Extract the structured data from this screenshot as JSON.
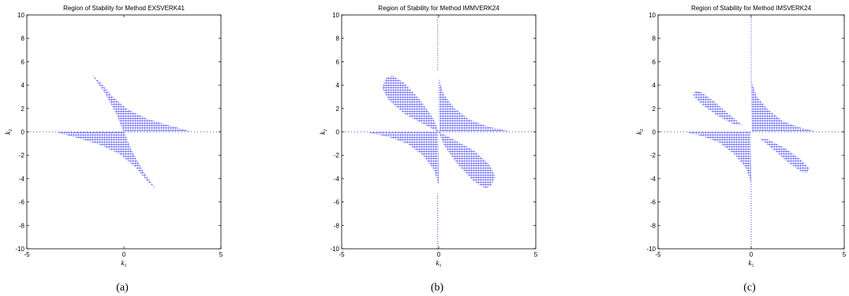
{
  "chart_data": [
    {
      "type": "scatter",
      "title": "Region of Stability for Method EXSVERK41",
      "xlabel": "k",
      "xlabel_sub": "1",
      "ylabel": "k",
      "ylabel_sub": "2",
      "xlim": [
        -5,
        5
      ],
      "ylim": [
        -10,
        10
      ],
      "xticks": [
        -5,
        0,
        5
      ],
      "yticks": [
        -10,
        -8,
        -6,
        -4,
        -2,
        0,
        2,
        4,
        6,
        8,
        10
      ],
      "caption": "(a)",
      "color": "#2b2bff",
      "regions": [
        [
          [
            -1.6,
            4.8
          ],
          [
            -1.2,
            4.2
          ],
          [
            -0.6,
            3.0
          ],
          [
            0.2,
            1.9
          ],
          [
            1.2,
            1.1
          ],
          [
            2.4,
            0.5
          ],
          [
            3.4,
            0.05
          ],
          [
            0,
            0
          ],
          [
            -0.4,
            1.6
          ],
          [
            -1.0,
            3.4
          ]
        ],
        [
          [
            1.6,
            -4.8
          ],
          [
            1.2,
            -4.2
          ],
          [
            0.6,
            -3.0
          ],
          [
            -0.2,
            -1.9
          ],
          [
            -1.2,
            -1.1
          ],
          [
            -2.4,
            -0.5
          ],
          [
            -3.4,
            -0.05
          ],
          [
            0,
            0
          ],
          [
            0.4,
            -1.6
          ],
          [
            1.0,
            -3.4
          ]
        ]
      ],
      "lines": []
    },
    {
      "type": "scatter",
      "title": "Region of Stability for Method IMMVERK24",
      "xlabel": "k",
      "xlabel_sub": "1",
      "ylabel": "k",
      "ylabel_sub": "2",
      "xlim": [
        -5,
        5
      ],
      "ylim": [
        -10,
        10
      ],
      "xticks": [
        -5,
        0,
        5
      ],
      "yticks": [
        -10,
        -8,
        -6,
        -4,
        -2,
        0,
        2,
        4,
        6,
        8,
        10
      ],
      "caption": "(b)",
      "color": "#2b2bff",
      "regions": [
        [
          [
            0.0,
            4.5
          ],
          [
            0.25,
            3.2
          ],
          [
            0.8,
            2.0
          ],
          [
            1.6,
            1.0
          ],
          [
            2.6,
            0.4
          ],
          [
            3.6,
            0.05
          ],
          [
            0.05,
            0.05
          ]
        ],
        [
          [
            0.0,
            -4.5
          ],
          [
            -0.25,
            -3.2
          ],
          [
            -0.8,
            -2.0
          ],
          [
            -1.6,
            -1.0
          ],
          [
            -2.6,
            -0.4
          ],
          [
            -3.6,
            -0.05
          ],
          [
            -0.05,
            -0.05
          ]
        ],
        [
          [
            -2.7,
            4.6
          ],
          [
            -2.4,
            4.8
          ],
          [
            -1.8,
            4.2
          ],
          [
            -1.0,
            2.8
          ],
          [
            -0.3,
            1.2
          ],
          [
            0,
            0
          ],
          [
            -0.8,
            0.7
          ],
          [
            -1.8,
            1.6
          ],
          [
            -2.6,
            2.8
          ],
          [
            -2.9,
            3.8
          ]
        ],
        [
          [
            2.7,
            -4.6
          ],
          [
            2.4,
            -4.8
          ],
          [
            1.8,
            -4.2
          ],
          [
            1.0,
            -2.8
          ],
          [
            0.3,
            -1.2
          ],
          [
            0,
            0
          ],
          [
            0.8,
            -0.7
          ],
          [
            1.8,
            -1.6
          ],
          [
            2.6,
            -2.8
          ],
          [
            2.9,
            -3.8
          ]
        ]
      ],
      "lines": [
        {
          "x": -0.05,
          "y": [
            5.3,
            10
          ]
        },
        {
          "x": -0.05,
          "y": [
            -10,
            -5.3
          ]
        }
      ]
    },
    {
      "type": "scatter",
      "title": "Region of Stability for Method IMSVERK24",
      "xlabel": "k",
      "xlabel_sub": "1",
      "ylabel": "k",
      "ylabel_sub": "2",
      "xlim": [
        -5,
        5
      ],
      "ylim": [
        -10,
        10
      ],
      "xticks": [
        -5,
        0,
        5
      ],
      "yticks": [
        -10,
        -8,
        -6,
        -4,
        -2,
        0,
        2,
        4,
        6,
        8,
        10
      ],
      "caption": "(c)",
      "color": "#2b2bff",
      "regions": [
        [
          [
            0.0,
            4.3
          ],
          [
            0.3,
            3.0
          ],
          [
            0.9,
            1.9
          ],
          [
            1.7,
            0.9
          ],
          [
            2.6,
            0.35
          ],
          [
            3.4,
            0.05
          ],
          [
            0.05,
            0.05
          ]
        ],
        [
          [
            0.0,
            -4.3
          ],
          [
            -0.3,
            -3.0
          ],
          [
            -0.9,
            -1.9
          ],
          [
            -1.7,
            -0.9
          ],
          [
            -2.6,
            -0.35
          ],
          [
            -3.4,
            -0.05
          ],
          [
            -0.05,
            -0.05
          ]
        ],
        [
          [
            -3.0,
            3.5
          ],
          [
            -2.7,
            3.4
          ],
          [
            -2.0,
            2.6
          ],
          [
            -1.2,
            1.5
          ],
          [
            -0.5,
            0.6
          ],
          [
            -0.9,
            0.65
          ],
          [
            -1.8,
            1.4
          ],
          [
            -2.6,
            2.3
          ],
          [
            -3.1,
            3.1
          ]
        ],
        [
          [
            3.0,
            -3.5
          ],
          [
            2.7,
            -3.4
          ],
          [
            2.0,
            -2.6
          ],
          [
            1.2,
            -1.5
          ],
          [
            0.5,
            -0.6
          ],
          [
            0.9,
            -0.65
          ],
          [
            1.8,
            -1.4
          ],
          [
            2.6,
            -2.3
          ],
          [
            3.1,
            -3.1
          ]
        ]
      ],
      "lines": [
        {
          "x": 0.0,
          "y": [
            4.3,
            10
          ]
        },
        {
          "x": 0.0,
          "y": [
            -10,
            -4.3
          ]
        }
      ]
    }
  ]
}
